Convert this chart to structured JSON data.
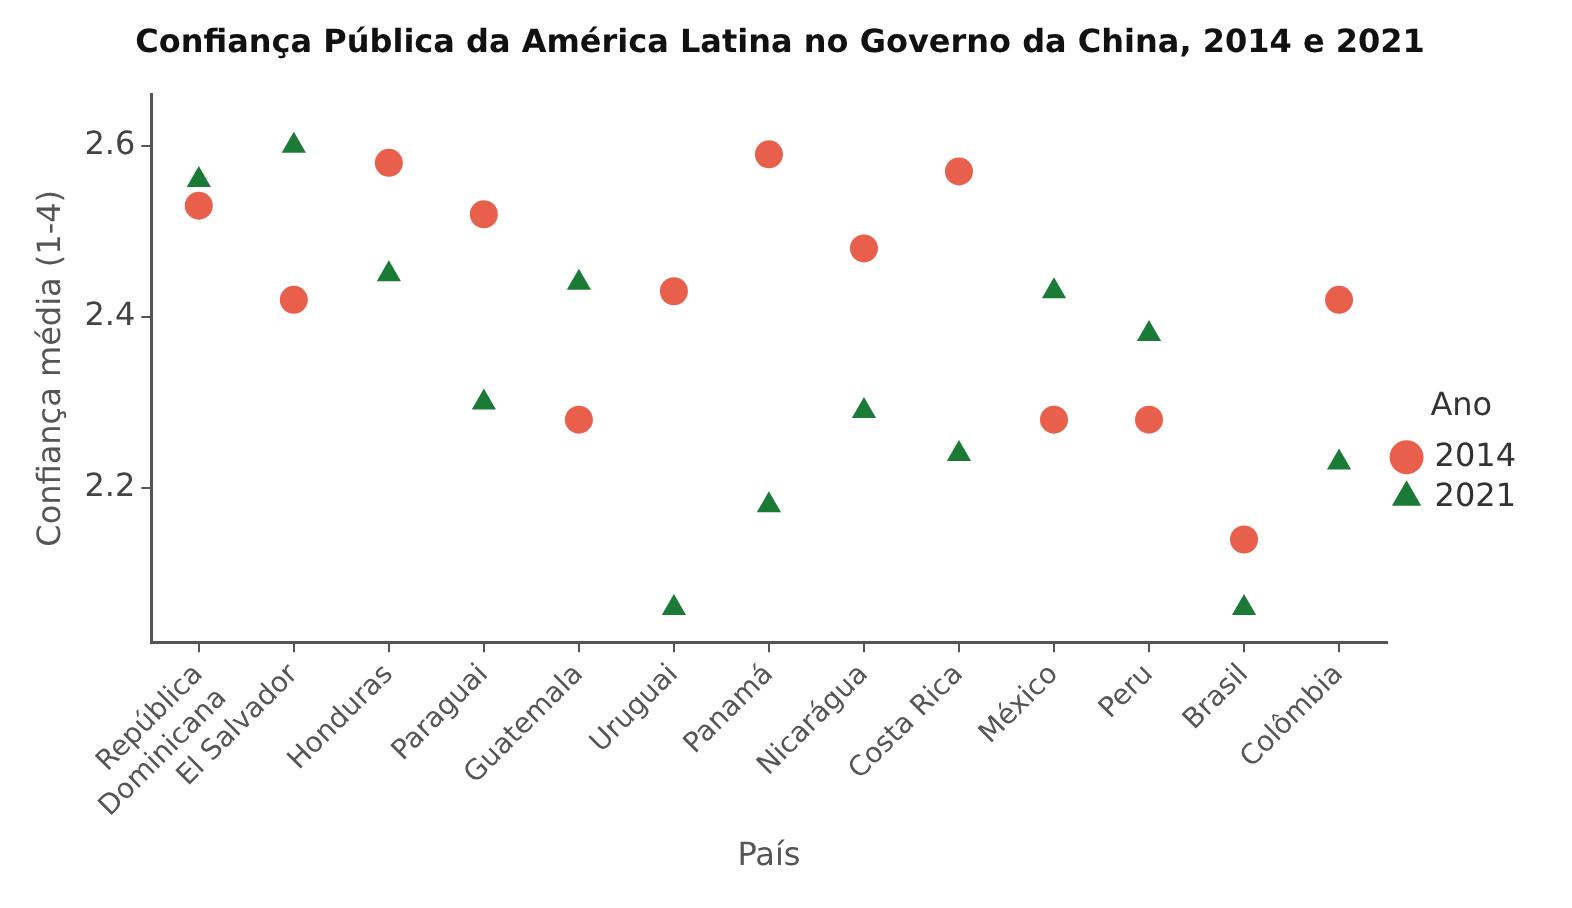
{
  "chart_data": {
    "type": "scatter",
    "title": "Confiança Pública da América Latina no Governo da China, 2014 e 2021",
    "xlabel": "País",
    "ylabel": "Confiança média (1-4)",
    "legend_title": "Ano",
    "categories": [
      "República\nDominicana",
      "El Salvador",
      "Honduras",
      "Paraguai",
      "Guatemala",
      "Uruguai",
      "Panamá",
      "Nicarágua",
      "Costa Rica",
      "México",
      "Peru",
      "Brasil",
      "Colômbia"
    ],
    "series": [
      {
        "name": "2014",
        "color": "#e8604c",
        "marker": "circle",
        "values": [
          2.53,
          2.42,
          2.58,
          2.52,
          2.28,
          2.43,
          2.59,
          2.48,
          2.57,
          2.28,
          2.28,
          2.14,
          2.42
        ]
      },
      {
        "name": "2021",
        "color": "#1b7a35",
        "marker": "triangle",
        "values": [
          2.56,
          2.6,
          2.45,
          2.3,
          2.44,
          2.06,
          2.18,
          2.29,
          2.24,
          2.43,
          2.38,
          2.06,
          2.23
        ]
      }
    ],
    "ylim": [
      2.02,
      2.66
    ],
    "yticks": [
      2.2,
      2.4,
      2.6
    ],
    "grid": false,
    "legend": "right"
  }
}
